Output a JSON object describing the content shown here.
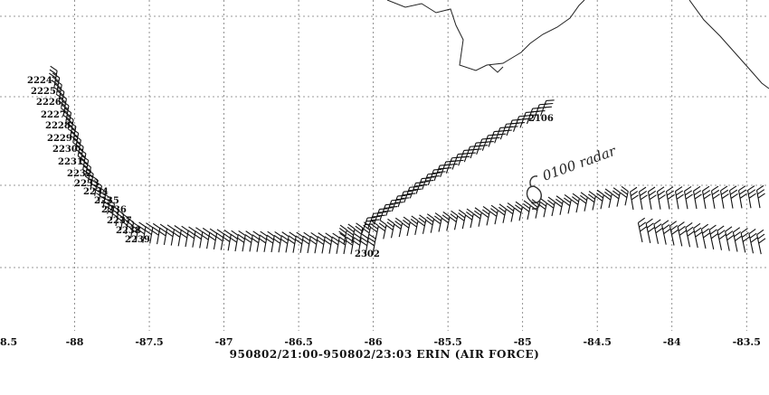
{
  "chart_data": {
    "type": "map",
    "xlim": [
      -88.5,
      -83.35
    ],
    "x_ticks": [
      "-88",
      "-87.5",
      "-87",
      "-86.5",
      "-86",
      "-85.5",
      "-85",
      "-84.5",
      "-84",
      "-83.5"
    ],
    "x_tick_values": [
      -88,
      -87.5,
      -87,
      -86.5,
      -86,
      -85.5,
      -85,
      -84.5,
      -84,
      -83.5
    ],
    "left_edge_label": "8.5",
    "grid": true,
    "caption": "950802/21:00-950802/23:03   ERIN  (AIR FORCE)",
    "annotation": "0100 radar",
    "track_labels": [
      "2224",
      "2225",
      "2226",
      "2227",
      "2228",
      "2229",
      "2230",
      "2231",
      "2232",
      "2233",
      "2234",
      "2235",
      "2236",
      "2237",
      "2238",
      "2239"
    ],
    "center_label": "2302",
    "east_label": "2106"
  }
}
